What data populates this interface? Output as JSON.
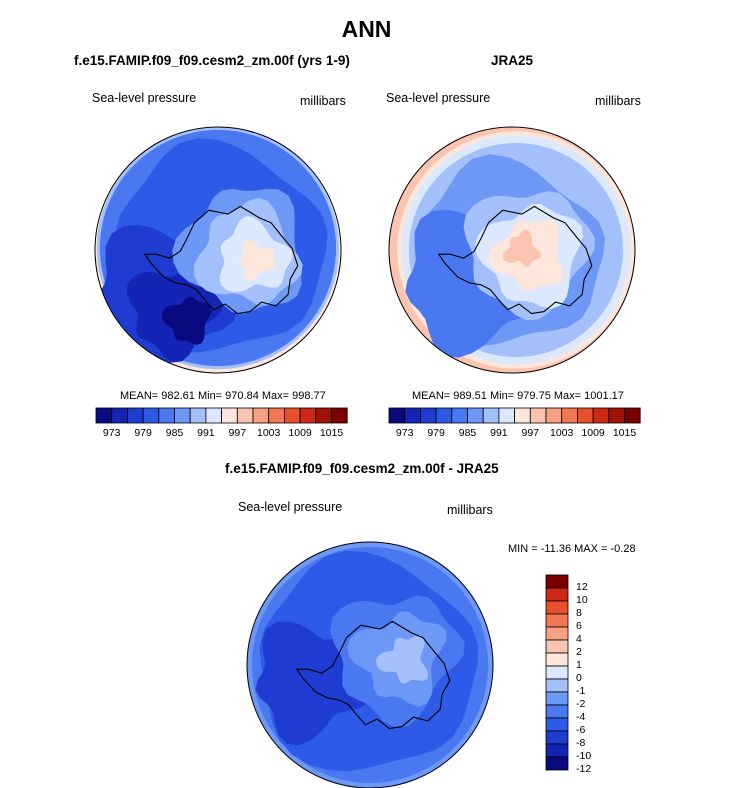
{
  "title": "ANN",
  "panels": [
    {
      "title": "f.e15.FAMIP.f09_f09.cesm2_zm.00f (yrs 1-9)",
      "variable": "Sea-level pressure",
      "units": "millibars",
      "stats": {
        "text": "MEAN= 982.61  Min= 970.84  Max= 998.77",
        "mean": 982.61,
        "min": 970.84,
        "max": 998.77
      }
    },
    {
      "title": "JRA25",
      "variable": "Sea-level pressure",
      "units": "millibars",
      "stats": {
        "text": "MEAN= 989.51  Min= 979.75  Max= 1001.17",
        "mean": 989.51,
        "min": 979.75,
        "max": 1001.17
      }
    },
    {
      "title": "f.e15.FAMIP.f09_f09.cesm2_zm.00f - JRA25",
      "variable": "Sea-level pressure",
      "units": "millibars",
      "stats": {
        "text": "MIN = -11.36 MAX =  -0.28",
        "min": -11.36,
        "max": -0.28
      }
    }
  ],
  "colors": {
    "abs_scale": [
      "#0a0a80",
      "#1424b4",
      "#1e3cd2",
      "#2d5ae6",
      "#4a78f0",
      "#6e98f5",
      "#a4c0fa",
      "#dce8fd",
      "#fde6dc",
      "#fbc4b0",
      "#f7a082",
      "#f27852",
      "#e8502c",
      "#cc2a14",
      "#a01206",
      "#7a0000"
    ],
    "diff_scale": [
      "#0a0a80",
      "#1424b4",
      "#1e3cd2",
      "#2d5ae6",
      "#4a78f0",
      "#6e98f5",
      "#a4c0fa",
      "#dce8fd",
      "#fde6dc",
      "#fbc4b0",
      "#f7a082",
      "#f27852",
      "#e8502c",
      "#cc2a14",
      "#7a0000"
    ]
  },
  "colorbars": {
    "abs_ticks": [
      "973",
      "979",
      "985",
      "991",
      "997",
      "1003",
      "1009",
      "1015"
    ],
    "diff_ticks": [
      "12",
      "10",
      "8",
      "6",
      "4",
      "2",
      "1",
      "0",
      "-1",
      "-2",
      "-4",
      "-6",
      "-8",
      "-10",
      "-12"
    ]
  },
  "chart_data": [
    {
      "type": "heatmap",
      "projection": "south polar stereographic",
      "title": "f.e15.FAMIP.f09_f09.cesm2_zm.00f (yrs 1-9)",
      "variable": "Sea-level pressure",
      "units": "millibars",
      "mean": 982.61,
      "min": 970.84,
      "max": 998.77,
      "levels": [
        973,
        976,
        979,
        982,
        985,
        988,
        991,
        994,
        997,
        1000,
        1003,
        1006,
        1009,
        1012,
        1015
      ]
    },
    {
      "type": "heatmap",
      "projection": "south polar stereographic",
      "title": "JRA25",
      "variable": "Sea-level pressure",
      "units": "millibars",
      "mean": 989.51,
      "min": 979.75,
      "max": 1001.17,
      "levels": [
        973,
        976,
        979,
        982,
        985,
        988,
        991,
        994,
        997,
        1000,
        1003,
        1006,
        1009,
        1012,
        1015
      ]
    },
    {
      "type": "heatmap",
      "projection": "south polar stereographic",
      "title": "f.e15.FAMIP.f09_f09.cesm2_zm.00f - JRA25",
      "variable": "Sea-level pressure",
      "units": "millibars",
      "min": -11.36,
      "max": -0.28,
      "levels": [
        -12,
        -10,
        -8,
        -6,
        -4,
        -2,
        -1,
        0,
        1,
        2,
        4,
        6,
        8,
        10,
        12
      ]
    }
  ]
}
